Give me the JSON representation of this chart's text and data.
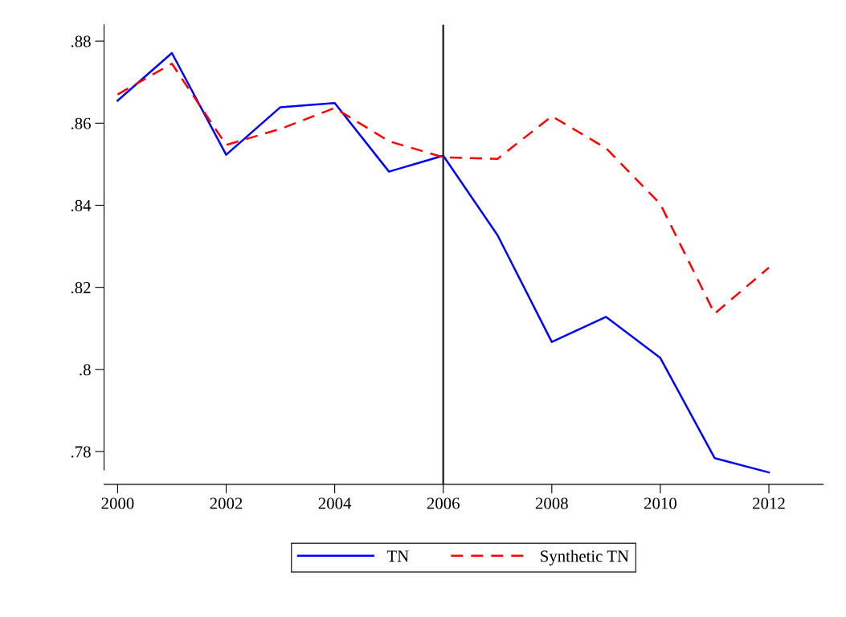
{
  "chart_data": {
    "type": "line",
    "x": [
      2000,
      2001,
      2002,
      2003,
      2004,
      2005,
      2006,
      2007,
      2008,
      2009,
      2010,
      2011,
      2012
    ],
    "series": [
      {
        "name": "TN",
        "color": "#0000ff",
        "line_style": "solid",
        "values": [
          0.8655,
          0.8771,
          0.8523,
          0.8639,
          0.8649,
          0.8482,
          0.8521,
          0.8327,
          0.8067,
          0.8128,
          0.8028,
          0.7784,
          0.7749
        ]
      },
      {
        "name": "Synthetic TN",
        "color": "#ff0000",
        "line_style": "dashed",
        "values": [
          0.867,
          0.8745,
          0.8547,
          0.8586,
          0.8637,
          0.8556,
          0.8517,
          0.8513,
          0.8617,
          0.8539,
          0.8403,
          0.8136,
          0.8248
        ]
      }
    ],
    "xlim": [
      1999.75,
      2013
    ],
    "xticks": [
      2000,
      2002,
      2004,
      2006,
      2008,
      2010,
      2012
    ],
    "ylim": [
      0.772,
      0.884
    ],
    "yticks": [
      {
        "value": 0.78,
        "label": ".78"
      },
      {
        "value": 0.8,
        "label": ".8"
      },
      {
        "value": 0.82,
        "label": ".82"
      },
      {
        "value": 0.84,
        "label": ".84"
      },
      {
        "value": 0.86,
        "label": ".86"
      },
      {
        "value": 0.88,
        "label": ".88"
      }
    ],
    "ref_lines": [
      {
        "axis": "x",
        "value": 2006,
        "color": "#333333"
      }
    ],
    "grid": false,
    "legend": "bottom"
  }
}
